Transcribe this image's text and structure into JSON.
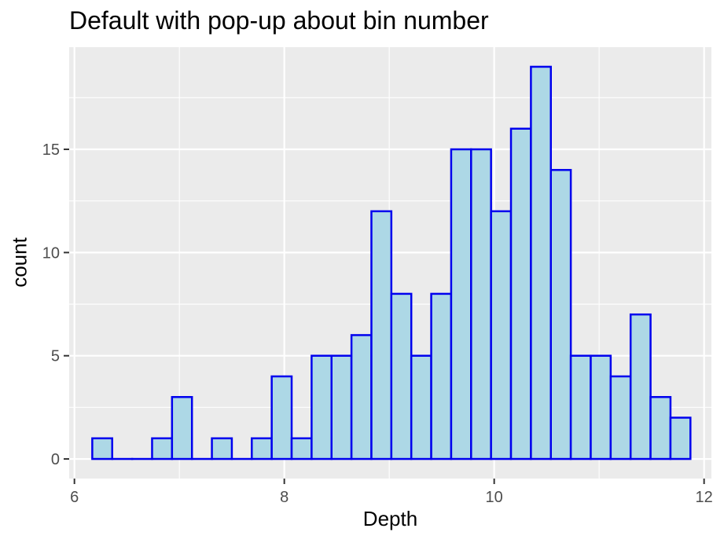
{
  "chart_data": {
    "type": "bar",
    "title": "Default with pop-up about bin number",
    "xlabel": "Depth",
    "ylabel": "count",
    "xlim": [
      5.95,
      12.07
    ],
    "ylim": [
      -0.95,
      19.95
    ],
    "x_ticks": [
      6,
      8,
      10,
      12
    ],
    "y_ticks": [
      0,
      5,
      10,
      15
    ],
    "x_tick_labels": [
      "6",
      "8",
      "10",
      "12"
    ],
    "y_tick_labels": [
      "0",
      "5",
      "10",
      "15"
    ],
    "bins": {
      "width": 0.19,
      "starts": [
        6.17,
        6.36,
        6.55,
        6.74,
        6.93,
        7.12,
        7.31,
        7.5,
        7.69,
        7.88,
        8.07,
        8.26,
        8.45,
        8.64,
        8.83,
        9.02,
        9.21,
        9.4,
        9.59,
        9.78,
        9.97,
        10.16,
        10.35,
        10.54,
        10.73,
        10.92,
        11.11,
        11.3,
        11.49,
        11.68
      ],
      "counts": [
        1,
        0,
        0,
        1,
        3,
        0,
        1,
        0,
        1,
        4,
        1,
        5,
        5,
        6,
        12,
        8,
        5,
        8,
        15,
        15,
        12,
        16,
        19,
        14,
        5,
        5,
        4,
        7,
        3,
        2
      ]
    },
    "panel_background": "#ebebeb",
    "grid": true,
    "grid_color": "#ffffff",
    "bar_fill": "#add8e6",
    "bar_outline": "#0000ee",
    "legend": "none"
  }
}
